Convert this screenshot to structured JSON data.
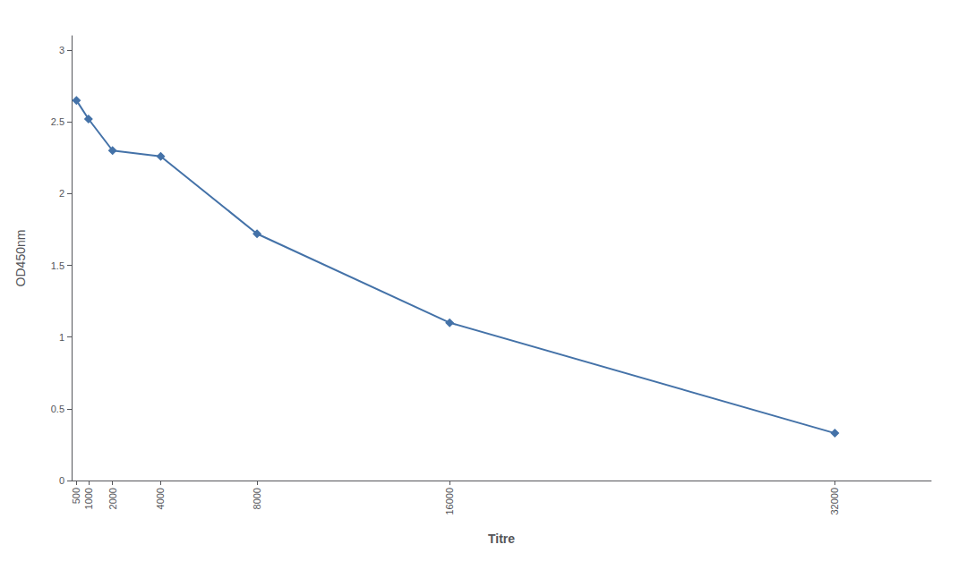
{
  "chart_data": {
    "type": "line",
    "x": [
      500,
      1000,
      2000,
      4000,
      8000,
      16000,
      32000
    ],
    "values": [
      2.65,
      2.52,
      2.3,
      2.26,
      1.72,
      1.1,
      0.33
    ],
    "xlabel": "Titre",
    "ylabel": "OD450nm",
    "color": "#4472a8",
    "marker": "diamond",
    "xlim": [
      300,
      36000
    ],
    "xticks": [
      500,
      1000,
      2000,
      4000,
      8000,
      16000,
      32000
    ],
    "ylim": [
      0,
      3.1
    ],
    "yticks": [
      0,
      0.5,
      1,
      1.5,
      2,
      2.5,
      3
    ],
    "grid": false
  }
}
